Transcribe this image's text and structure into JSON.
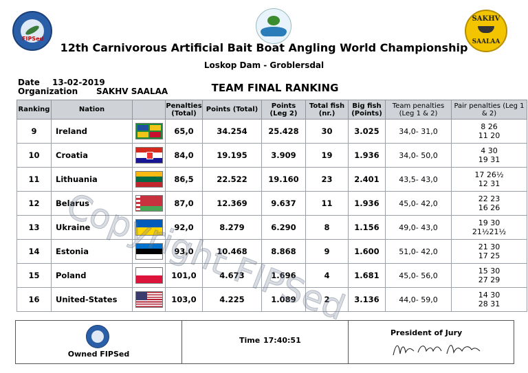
{
  "header": {
    "title": "12th Carnivorous Artificial Bait Boat Angling World Championship",
    "subtitle": "Loskop Dam - Groblersdal",
    "logo_left_text": "FIPSed",
    "logo_right_top": "SAKHV",
    "logo_right_bottom": "SAALAA"
  },
  "meta": {
    "date_label": "Date",
    "date": "13-02-2019",
    "organization_label": "Organization",
    "organization": "SAKHV SAALAA"
  },
  "report_title": "TEAM FINAL RANKING",
  "table": {
    "columns": [
      "Ranking",
      "Nation",
      "",
      "Penalties (Total)",
      "Points (Total)",
      "Points (Leg 2)",
      "Total fish (nr.)",
      "Big fish (Points)",
      "Team penalties (Leg 1 & 2)",
      "Pair penalties (Leg 1 & 2)"
    ],
    "rows": [
      {
        "rank": "9",
        "nation": "Ireland",
        "flag": "ireland",
        "penalties_total": "65,0",
        "points_total": "34.254",
        "points_leg2": "25.428",
        "total_fish": "30",
        "big_fish": "3.025",
        "team_penalties": "34,0- 31,0",
        "pair_1": "8 26",
        "pair_2": "11 20"
      },
      {
        "rank": "10",
        "nation": "Croatia",
        "flag": "croatia",
        "penalties_total": "84,0",
        "points_total": "19.195",
        "points_leg2": "3.909",
        "total_fish": "19",
        "big_fish": "1.936",
        "team_penalties": "34,0- 50,0",
        "pair_1": "4 30",
        "pair_2": "19 31"
      },
      {
        "rank": "11",
        "nation": "Lithuania",
        "flag": "lithuania",
        "penalties_total": "86,5",
        "points_total": "22.522",
        "points_leg2": "19.160",
        "total_fish": "23",
        "big_fish": "2.401",
        "team_penalties": "43,5- 43,0",
        "pair_1": "17 26½",
        "pair_2": "12 31"
      },
      {
        "rank": "12",
        "nation": "Belarus",
        "flag": "belarus",
        "penalties_total": "87,0",
        "points_total": "12.369",
        "points_leg2": "9.637",
        "total_fish": "11",
        "big_fish": "1.936",
        "team_penalties": "45,0- 42,0",
        "pair_1": "22 23",
        "pair_2": "16 26"
      },
      {
        "rank": "13",
        "nation": "Ukraine",
        "flag": "ukraine",
        "penalties_total": "92,0",
        "points_total": "8.279",
        "points_leg2": "6.290",
        "total_fish": "8",
        "big_fish": "1.156",
        "team_penalties": "49,0- 43,0",
        "pair_1": "19 30",
        "pair_2": "21½21½"
      },
      {
        "rank": "14",
        "nation": "Estonia",
        "flag": "estonia",
        "penalties_total": "93,0",
        "points_total": "10.468",
        "points_leg2": "8.868",
        "total_fish": "9",
        "big_fish": "1.600",
        "team_penalties": "51,0- 42,0",
        "pair_1": "21 30",
        "pair_2": "17 25"
      },
      {
        "rank": "15",
        "nation": "Poland",
        "flag": "poland",
        "penalties_total": "101,0",
        "points_total": "4.673",
        "points_leg2": "1.696",
        "total_fish": "4",
        "big_fish": "1.681",
        "team_penalties": "45,0- 56,0",
        "pair_1": "15 30",
        "pair_2": "27 29"
      },
      {
        "rank": "16",
        "nation": "United-States",
        "flag": "united-states",
        "penalties_total": "103,0",
        "points_total": "4.225",
        "points_leg2": "1.089",
        "total_fish": "2",
        "big_fish": "3.136",
        "team_penalties": "44,0- 59,0",
        "pair_1": "14 30",
        "pair_2": "28 31"
      }
    ]
  },
  "footer": {
    "owned": "Owned FIPSed",
    "time_label": "Time",
    "time": "17:40:51",
    "jury_label": "President of Jury",
    "signature": "Mo Glado Mattei"
  },
  "watermark": "Copyright FIPSed",
  "colors": {
    "header_bg": "#cfd3d8",
    "border": "#9aa0a6",
    "watermark": "#7882 96"
  }
}
